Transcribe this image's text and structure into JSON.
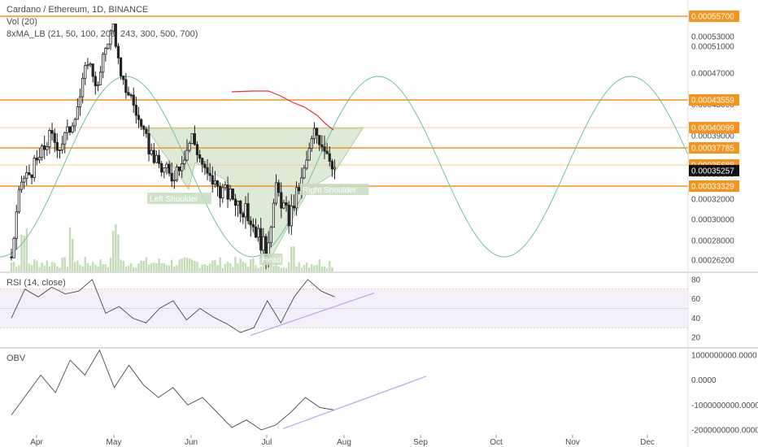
{
  "header": {
    "title": "Cardano / Ethereum, 1D, BINANCE",
    "vol_label": "Vol (20)",
    "ma_label": "8xMA_LB (21, 50, 100, 200, 243, 300, 500, 700)"
  },
  "colors": {
    "candle": "#222222",
    "level_line": "#f7941d",
    "level_line_light": "#f9c98b",
    "price_tag": "#f7941d",
    "current_tag": "#111111",
    "sine": "#6fbfa3",
    "ma_red": "#e0303c",
    "pattern_fill": "#cfe3c4",
    "volume": "#b9d6a8",
    "trendline": "#b9a3f0",
    "rsi_line": "#4a4a4a",
    "obv_line": "#4a4a4a",
    "pane_sep": "#bbbbbb"
  },
  "chart_data": [
    {
      "type": "candlestick",
      "title": "Cardano / Ethereum, 1D, BINANCE",
      "x_tick_labels": [
        "Apr",
        "May",
        "Jun",
        "Jul",
        "Aug",
        "Sep",
        "Oct",
        "Nov",
        "Dec"
      ],
      "y_tick_labels": [
        "0.00053000",
        "0.00051000",
        "0.00047000",
        "0.00043000",
        "0.00039000",
        "0.00035000",
        "0.00032000",
        "0.00030000",
        "0.00028000",
        "0.00026200"
      ],
      "y_ticks": [
        0.00053,
        0.00051,
        0.00047,
        0.00043,
        0.00039,
        0.00035,
        0.00032,
        0.0003,
        0.00028,
        0.000262
      ],
      "horizontal_levels": [
        {
          "label": "0.00055700",
          "value": 0.000557,
          "style": "orange"
        },
        {
          "label": "0.00043559",
          "value": 0.00043559,
          "style": "orange"
        },
        {
          "label": "0.00040099",
          "value": 0.00040099,
          "style": "light"
        },
        {
          "label": "0.00037785",
          "value": 0.00037785,
          "style": "orange"
        },
        {
          "label": "0.00035688",
          "value": 0.00035688,
          "style": "light"
        },
        {
          "label": "0.00033329",
          "value": 0.00033329,
          "style": "orange"
        }
      ],
      "current_price": {
        "label": "0.00035257",
        "value": 0.00035257
      },
      "annotations": [
        "Left Shoulder",
        "Head",
        "Right Shoulder"
      ],
      "candles_close_approx": [
        {
          "date": "Mar 22",
          "value": 0.000265
        },
        {
          "date": "Mar 26",
          "value": 0.00034
        },
        {
          "date": "Apr 1",
          "value": 0.00036
        },
        {
          "date": "Apr 6",
          "value": 0.00039
        },
        {
          "date": "Apr 10",
          "value": 0.00038
        },
        {
          "date": "Apr 14",
          "value": 0.0004
        },
        {
          "date": "Apr 18",
          "value": 0.00044
        },
        {
          "date": "Apr 21",
          "value": 0.00049
        },
        {
          "date": "Apr 25",
          "value": 0.00045
        },
        {
          "date": "Apr 28",
          "value": 0.00051
        },
        {
          "date": "May 1",
          "value": 0.000545
        },
        {
          "date": "May 4",
          "value": 0.00046
        },
        {
          "date": "May 8",
          "value": 0.00044
        },
        {
          "date": "May 13",
          "value": 0.00039
        },
        {
          "date": "May 18",
          "value": 0.00036
        },
        {
          "date": "May 24",
          "value": 0.000345
        },
        {
          "date": "May 29",
          "value": 0.00037
        },
        {
          "date": "Jun 1",
          "value": 0.00039
        },
        {
          "date": "Jun 6",
          "value": 0.00035
        },
        {
          "date": "Jun 12",
          "value": 0.00033
        },
        {
          "date": "Jun 18",
          "value": 0.00032
        },
        {
          "date": "Jun 24",
          "value": 0.0003
        },
        {
          "date": "Jun 30",
          "value": 0.00027
        },
        {
          "date": "Jul 4",
          "value": 0.00033
        },
        {
          "date": "Jul 9",
          "value": 0.0003
        },
        {
          "date": "Jul 14",
          "value": 0.00034
        },
        {
          "date": "Jul 19",
          "value": 0.000395
        },
        {
          "date": "Jul 23",
          "value": 0.00038
        },
        {
          "date": "Jul 27",
          "value": 0.000355
        }
      ]
    },
    {
      "type": "line",
      "title": "RSI (14, close)",
      "y_tick_labels": [
        "80",
        "60",
        "40",
        "20"
      ],
      "y_ticks": [
        80,
        60,
        40,
        20
      ],
      "bands": [
        70,
        30
      ],
      "series": [
        {
          "values": [
            40,
            70,
            62,
            72,
            65,
            68,
            80,
            45,
            52,
            40,
            35,
            50,
            58,
            38,
            50,
            41,
            34,
            25,
            30,
            58,
            35,
            62,
            80,
            68,
            62
          ]
        }
      ]
    },
    {
      "type": "line",
      "title": "OBV",
      "y_tick_labels": [
        "1000000000.0000",
        "0.0000",
        "-1000000000.0000",
        "-2000000000.0000"
      ],
      "y_ticks": [
        1000000000,
        0,
        -1000000000,
        -2000000000
      ],
      "series": [
        {
          "values": [
            -1400000000,
            -600000000,
            200000000,
            -500000000,
            800000000,
            200000000,
            1200000000,
            -300000000,
            600000000,
            -200000000,
            -700000000,
            -300000000,
            -1000000000,
            -700000000,
            -1300000000,
            -1900000000,
            -1600000000,
            -2000000000,
            -1800000000,
            -1300000000,
            -700000000,
            -1100000000,
            -1200000000
          ]
        }
      ]
    }
  ]
}
